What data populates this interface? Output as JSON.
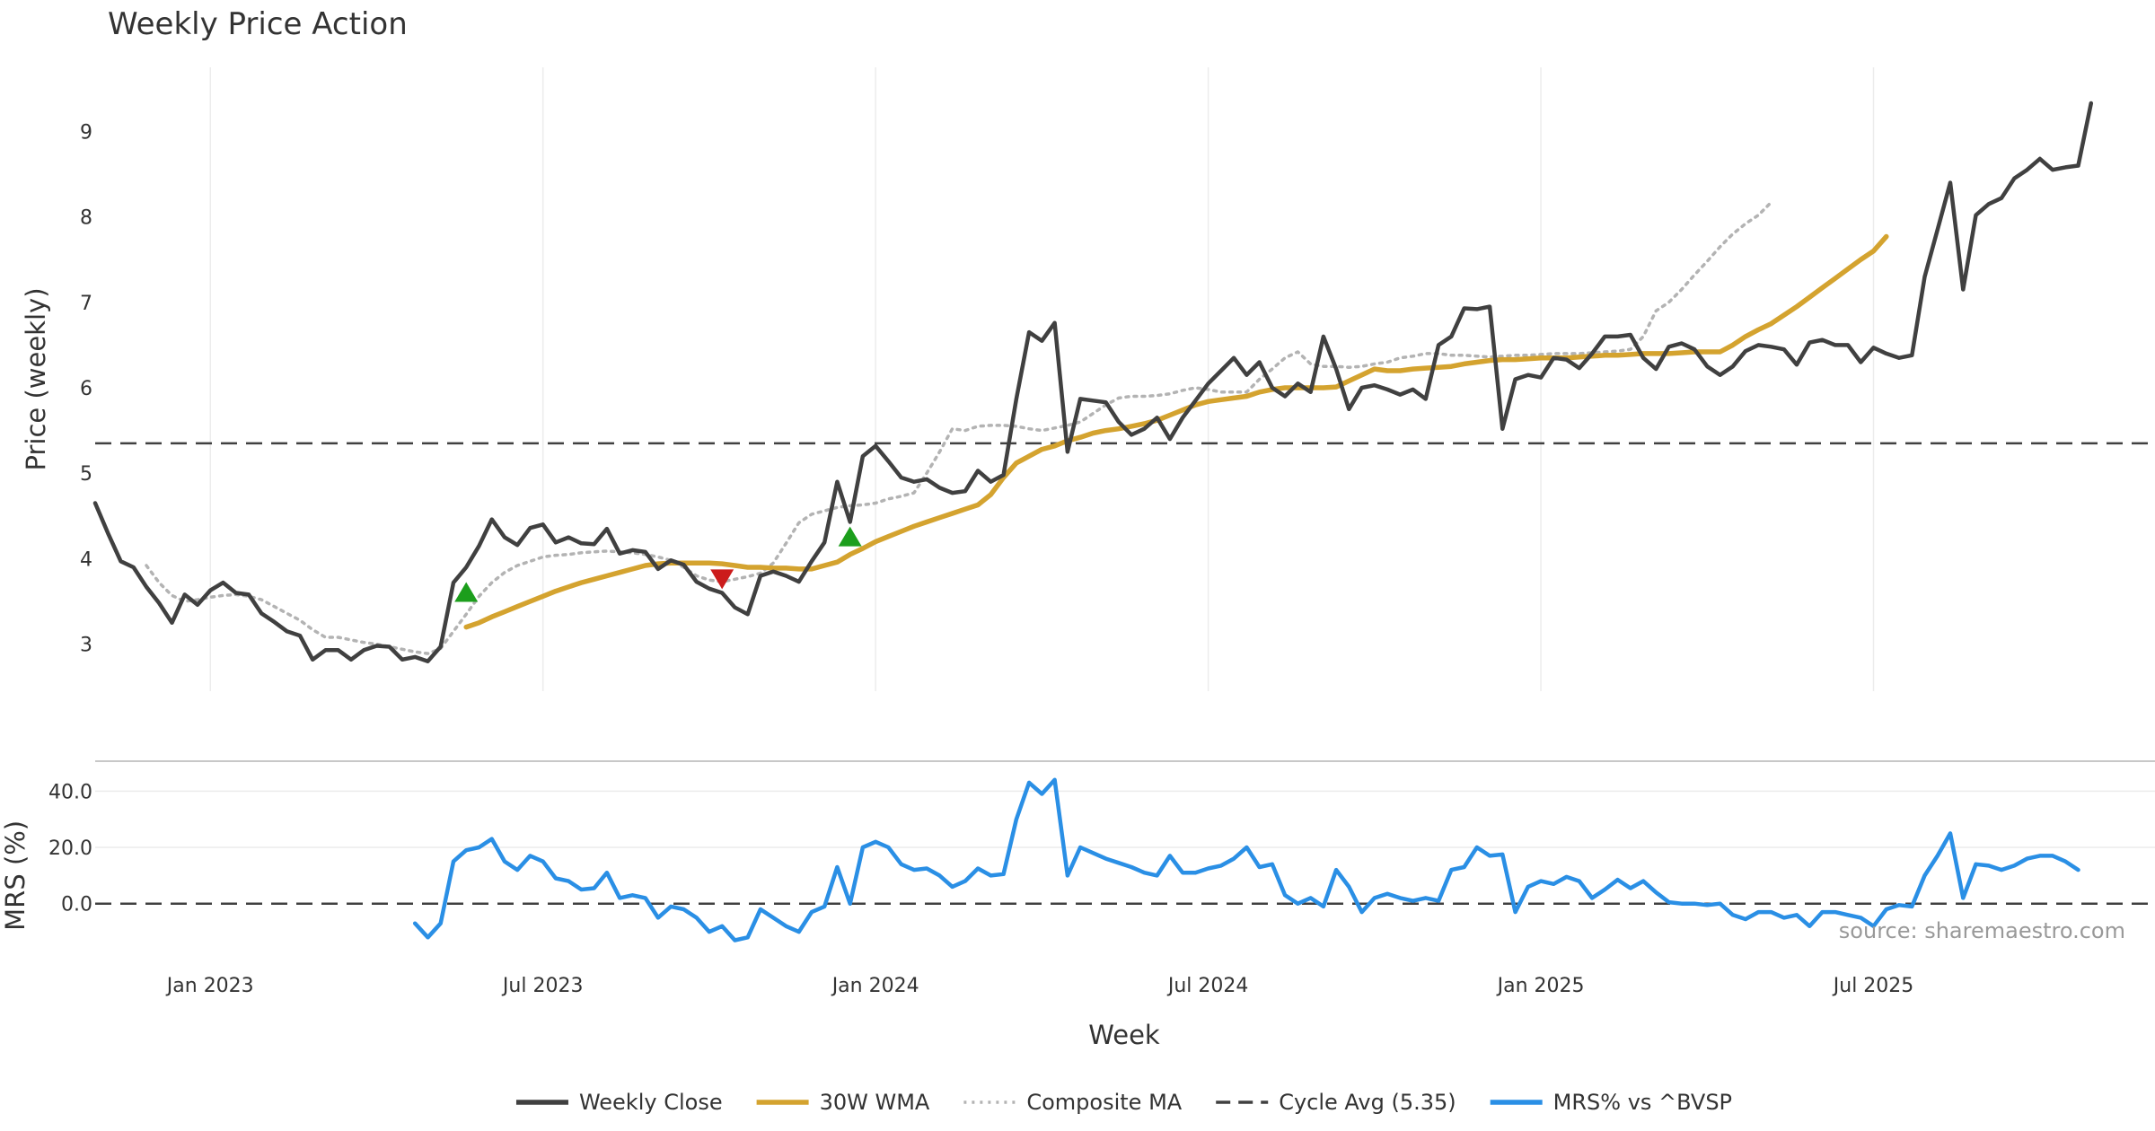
{
  "chart_data": {
    "type": "line",
    "title": "Weekly Price Action",
    "xlabel": "Week",
    "x_ticks": [
      {
        "label": "Jan 2023",
        "week": 13
      },
      {
        "label": "Jul 2023",
        "week": 39
      },
      {
        "label": "Jan 2024",
        "week": 65
      },
      {
        "label": "Jul 2024",
        "week": 91
      },
      {
        "label": "Jan 2025",
        "week": 117
      },
      {
        "label": "Jul 2025",
        "week": 143
      }
    ],
    "x_range": [
      4,
      165
    ],
    "price_panel": {
      "ylabel": "Price (weekly)",
      "ylim": [
        2.45,
        9.75
      ],
      "y_ticks": [
        "3",
        "4",
        "5",
        "6",
        "7",
        "8",
        "9"
      ],
      "cycle_avg": 5.35,
      "series": [
        {
          "name": "Weekly Close",
          "color": "#404040",
          "style": "solid",
          "start_week": 4,
          "values": [
            4.65,
            4.3,
            3.97,
            3.9,
            3.67,
            3.48,
            3.25,
            3.58,
            3.46,
            3.63,
            3.72,
            3.6,
            3.58,
            3.36,
            3.26,
            3.15,
            3.1,
            2.82,
            2.93,
            2.93,
            2.82,
            2.93,
            2.98,
            2.97,
            2.82,
            2.85,
            2.8,
            2.97,
            3.72,
            3.9,
            4.15,
            4.46,
            4.25,
            4.16,
            4.36,
            4.4,
            4.19,
            4.25,
            4.18,
            4.17,
            4.35,
            4.06,
            4.1,
            4.08,
            3.88,
            3.98,
            3.93,
            3.73,
            3.65,
            3.6,
            3.43,
            3.35,
            3.8,
            3.85,
            3.8,
            3.73,
            3.97,
            4.19,
            4.9,
            4.43,
            5.2,
            5.32,
            5.14,
            4.95,
            4.9,
            4.93,
            4.83,
            4.77,
            4.79,
            5.03,
            4.9,
            4.98,
            5.87,
            6.65,
            6.55,
            6.76,
            5.25,
            5.87,
            5.85,
            5.83,
            5.6,
            5.45,
            5.52,
            5.65,
            5.4,
            5.65,
            5.85,
            6.05,
            6.2,
            6.35,
            6.15,
            6.3,
            6.0,
            5.9,
            6.05,
            5.95,
            6.6,
            6.22,
            5.75,
            6.0,
            6.03,
            5.98,
            5.92,
            5.98,
            5.87,
            6.5,
            6.6,
            6.93,
            6.92,
            6.95,
            5.52,
            6.1,
            6.15,
            6.12,
            6.35,
            6.33,
            6.23,
            6.4,
            6.6,
            6.6,
            6.62,
            6.35,
            6.22,
            6.48,
            6.52,
            6.45,
            6.25,
            6.15,
            6.25,
            6.43,
            6.5,
            6.48,
            6.45,
            6.27,
            6.53,
            6.56,
            6.5,
            6.5,
            6.3,
            6.47,
            6.4,
            6.35,
            6.38,
            7.3,
            7.85,
            8.4,
            7.15,
            8.02,
            8.15,
            8.22,
            8.45,
            8.55,
            8.68,
            8.55,
            8.58,
            8.6,
            9.33
          ]
        },
        {
          "name": "30W WMA",
          "color": "#D4A32F",
          "style": "solid",
          "start_week": 33,
          "values": [
            3.2,
            3.25,
            3.32,
            3.38,
            3.44,
            3.5,
            3.56,
            3.62,
            3.67,
            3.72,
            3.76,
            3.8,
            3.84,
            3.88,
            3.92,
            3.94,
            3.95,
            3.95,
            3.95,
            3.95,
            3.94,
            3.92,
            3.9,
            3.9,
            3.89,
            3.89,
            3.88,
            3.88,
            3.92,
            3.96,
            4.05,
            4.12,
            4.2,
            4.26,
            4.32,
            4.38,
            4.43,
            4.48,
            4.53,
            4.58,
            4.63,
            4.75,
            4.95,
            5.12,
            5.2,
            5.28,
            5.32,
            5.38,
            5.42,
            5.47,
            5.5,
            5.52,
            5.55,
            5.58,
            5.62,
            5.68,
            5.74,
            5.8,
            5.84,
            5.86,
            5.88,
            5.9,
            5.95,
            5.98,
            6.0,
            6.0,
            6.0,
            6.0,
            6.01,
            6.08,
            6.15,
            6.22,
            6.2,
            6.2,
            6.22,
            6.23,
            6.24,
            6.25,
            6.28,
            6.3,
            6.32,
            6.33,
            6.33,
            6.34,
            6.35,
            6.35,
            6.35,
            6.36,
            6.37,
            6.38,
            6.38,
            6.39,
            6.4,
            6.4,
            6.4,
            6.41,
            6.42,
            6.42,
            6.42,
            6.5,
            6.6,
            6.68,
            6.75,
            6.85,
            6.95,
            7.06,
            7.17,
            7.28,
            7.39,
            7.5,
            7.6,
            7.77
          ]
        },
        {
          "name": "Composite MA",
          "color": "#B3B3B3",
          "style": "dotted",
          "start_week": 8,
          "values": [
            3.92,
            3.72,
            3.57,
            3.5,
            3.52,
            3.55,
            3.57,
            3.58,
            3.56,
            3.52,
            3.44,
            3.36,
            3.28,
            3.17,
            3.08,
            3.08,
            3.05,
            3.02,
            3.0,
            2.97,
            2.94,
            2.91,
            2.89,
            2.95,
            3.15,
            3.35,
            3.56,
            3.72,
            3.84,
            3.92,
            3.97,
            4.02,
            4.04,
            4.05,
            4.07,
            4.08,
            4.09,
            4.08,
            4.07,
            4.05,
            4.02,
            3.98,
            3.9,
            3.8,
            3.75,
            3.73,
            3.76,
            3.79,
            3.83,
            3.95,
            4.18,
            4.42,
            4.52,
            4.56,
            4.6,
            4.62,
            4.63,
            4.65,
            4.7,
            4.73,
            4.77,
            5.0,
            5.25,
            5.52,
            5.5,
            5.55,
            5.56,
            5.56,
            5.55,
            5.52,
            5.5,
            5.53,
            5.56,
            5.6,
            5.7,
            5.8,
            5.88,
            5.9,
            5.9,
            5.91,
            5.93,
            5.97,
            6.0,
            5.98,
            5.95,
            5.95,
            5.95,
            6.1,
            6.22,
            6.35,
            6.42,
            6.28,
            6.25,
            6.25,
            6.24,
            6.25,
            6.28,
            6.3,
            6.35,
            6.37,
            6.4,
            6.4,
            6.38,
            6.38,
            6.37,
            6.36,
            6.37,
            6.38,
            6.38,
            6.39,
            6.4,
            6.4,
            6.4,
            6.41,
            6.42,
            6.43,
            6.45,
            6.6,
            6.9,
            7.0,
            7.15,
            7.32,
            7.48,
            7.65,
            7.8,
            7.92,
            8.02,
            8.17
          ]
        }
      ],
      "signals": [
        {
          "type": "buy",
          "week": 33,
          "value": 3.6,
          "color": "#1C9E1C"
        },
        {
          "type": "sell",
          "week": 53,
          "value": 3.77,
          "color": "#CC1C1C"
        },
        {
          "type": "buy",
          "week": 63,
          "value": 4.25,
          "color": "#1C9E1C"
        }
      ]
    },
    "mrs_panel": {
      "ylabel": "MRS (%)",
      "ylim": [
        -17,
        50
      ],
      "y_ticks": [
        "0.0",
        "20.0",
        "40.0"
      ],
      "zero_line": 0,
      "series": [
        {
          "name": "MRS% vs ^BVSP",
          "color": "#2A8FE5",
          "style": "solid",
          "start_week": 29,
          "values": [
            -7,
            -12,
            -7,
            15,
            19,
            20,
            23,
            15,
            12,
            17,
            15,
            9,
            8,
            5,
            5.5,
            11,
            2,
            3,
            2,
            -5,
            -1,
            -2,
            -5,
            -10,
            -8,
            -13,
            -12,
            -2,
            -5,
            -8,
            -10,
            -3,
            -1,
            13,
            0,
            20,
            22,
            20,
            14,
            12,
            12.5,
            10,
            6,
            8,
            12.5,
            10,
            10.5,
            30,
            43,
            39,
            44,
            10,
            20,
            18,
            16,
            14.5,
            13,
            11,
            10,
            17,
            11,
            11,
            12.5,
            13.5,
            16,
            20,
            13,
            14,
            3,
            0,
            2,
            -1,
            12,
            6,
            -3,
            2,
            3.5,
            2,
            1,
            2,
            1,
            12,
            13,
            20,
            17,
            17.5,
            -3,
            6,
            8,
            7,
            9.5,
            8,
            2,
            5,
            8.5,
            5.5,
            8,
            4,
            0.5,
            0,
            0,
            -0.5,
            0,
            -4,
            -5.5,
            -3,
            -3,
            -5,
            -4,
            -8,
            -3,
            -3,
            -4,
            -5,
            -8,
            -2,
            -0.5,
            -1,
            10,
            17,
            25,
            2,
            14,
            13.5,
            12,
            13.5,
            16,
            17,
            17,
            15,
            12
          ]
        }
      ]
    },
    "legend": {
      "placement": "bottom-center",
      "items": [
        {
          "label": "Weekly Close",
          "color": "#404040",
          "style": "solid"
        },
        {
          "label": "30W WMA",
          "color": "#D4A32F",
          "style": "solid"
        },
        {
          "label": "Composite MA",
          "color": "#B3B3B3",
          "style": "dotted"
        },
        {
          "label": "Cycle Avg (5.35)",
          "color": "#404040",
          "style": "dashed"
        },
        {
          "label": "MRS% vs ^BVSP",
          "color": "#2A8FE5",
          "style": "solid"
        }
      ]
    },
    "source": "source: sharemaestro.com",
    "grid": true
  }
}
